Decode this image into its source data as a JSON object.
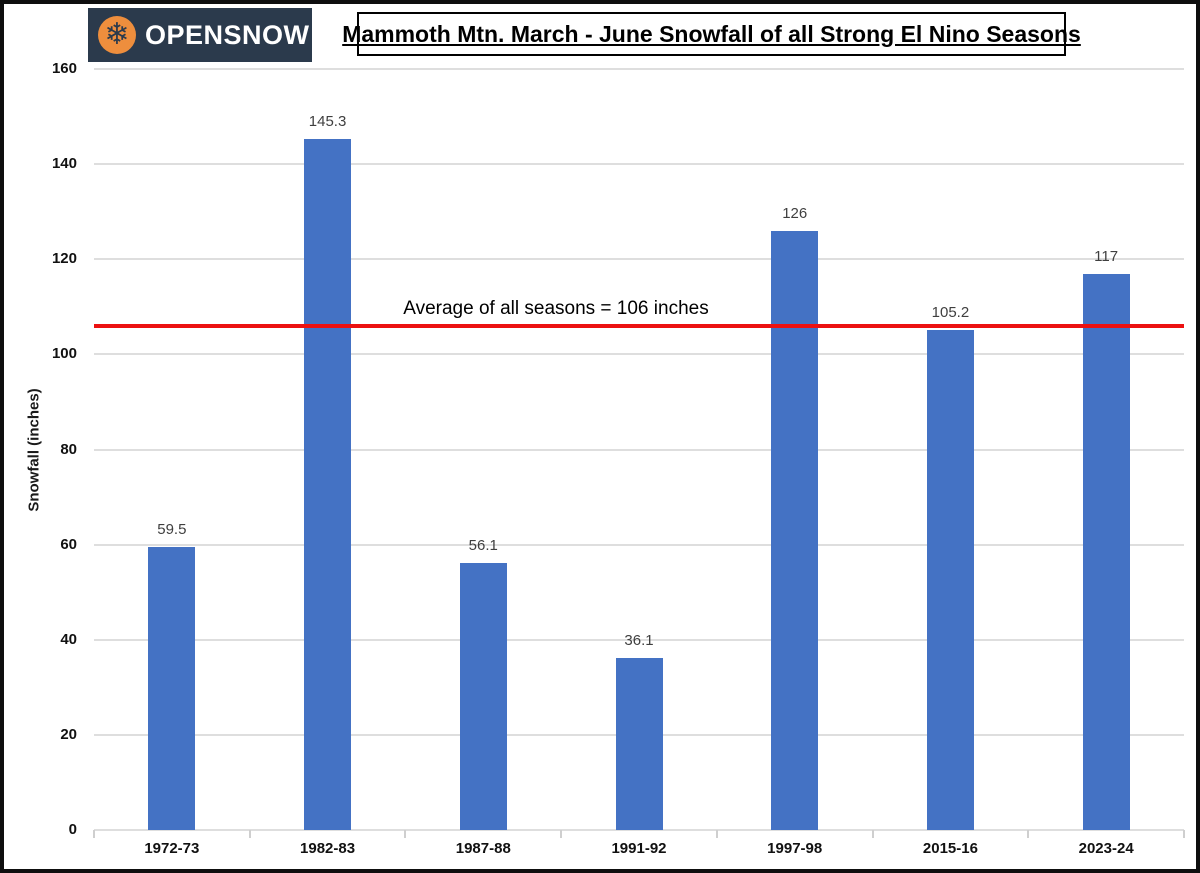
{
  "logo": {
    "text_open": "OPEN",
    "text_snow": "SNOW",
    "bg_color": "#2b3a4c",
    "icon_color": "#ee8e3d",
    "icon_glyph": "❄"
  },
  "title": "Mammoth Mtn. March - June Snowfall of all Strong El Nino Seasons",
  "chart_data": {
    "type": "bar",
    "title": "Mammoth Mtn. March - June Snowfall of all Strong El Nino Seasons",
    "categories": [
      "1972-73",
      "1982-83",
      "1987-88",
      "1991-92",
      "1997-98",
      "2015-16",
      "2023-24"
    ],
    "values": [
      59.5,
      145.3,
      56.1,
      36.1,
      126,
      105.2,
      117
    ],
    "value_labels": [
      "59.5",
      "145.3",
      "56.1",
      "36.1",
      "126",
      "105.2",
      "117"
    ],
    "xlabel": "",
    "ylabel": "Snowfall (inches)",
    "ylim": [
      0,
      160
    ],
    "yticks": [
      0,
      20,
      40,
      60,
      80,
      100,
      120,
      140,
      160
    ],
    "grid": true,
    "legend": "none",
    "bar_color": "#4472c4",
    "gridline_color": "#dedede",
    "average_line": {
      "value": 106,
      "label": "Average of all seasons = 106 inches",
      "color": "#ec1111"
    }
  }
}
